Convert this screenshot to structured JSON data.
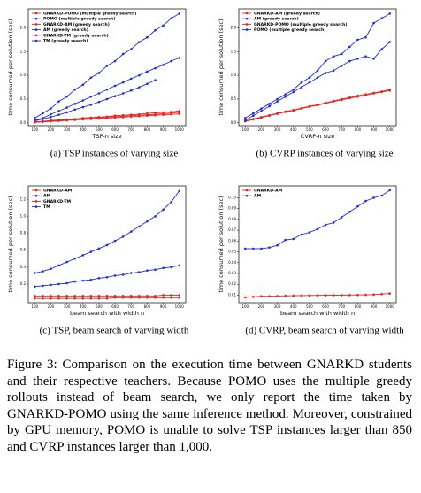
{
  "chart_data": [
    {
      "type": "line",
      "xlabel": "TSP-n size",
      "ylabel": "time consumed per solution (sec)",
      "caption": "(a)  TSP instances of varying size",
      "x": [
        100,
        150,
        200,
        250,
        300,
        350,
        400,
        450,
        500,
        550,
        600,
        650,
        700,
        750,
        800,
        850,
        900,
        950,
        1000
      ],
      "xlim": [
        60,
        1040
      ],
      "xticks": [
        100,
        200,
        300,
        400,
        500,
        600,
        700,
        800,
        900,
        1000
      ],
      "ylim": [
        -0.06,
        2.4
      ],
      "yticks": [
        {
          "value": 0,
          "label": "0.0"
        },
        0.5,
        {
          "value": 1,
          "label": "1.0"
        },
        1.5,
        {
          "value": 2,
          "label": "2.0"
        }
      ],
      "series": [
        {
          "name": "GNARKD-POMO (multiple greedy search)",
          "color": "#e8231f",
          "values": [
            0.01,
            0.02,
            0.03,
            0.04,
            0.05,
            0.06,
            0.07,
            0.08,
            0.09,
            0.1,
            0.11,
            0.12,
            0.13,
            0.14,
            0.15,
            0.16,
            0.17,
            0.18,
            0.19
          ]
        },
        {
          "name": "POMO (multiple greedy search)",
          "color": "#1f2fd6",
          "values": [
            0.04,
            0.08,
            0.12,
            0.17,
            0.22,
            0.28,
            0.33,
            0.38,
            0.44,
            0.5,
            0.56,
            0.62,
            0.68,
            0.75,
            0.82,
            0.9,
            null,
            null,
            null
          ]
        },
        {
          "name": "GNARKD-AM (greedy search)",
          "color": "#e8231f",
          "values": [
            0.02,
            0.03,
            0.05,
            0.06,
            0.07,
            0.08,
            0.1,
            0.11,
            0.12,
            0.13,
            0.15,
            0.16,
            0.17,
            0.18,
            0.2,
            0.21,
            0.22,
            0.23,
            0.25
          ]
        },
        {
          "name": "AM (greedy search)",
          "color": "#1f2fd6",
          "values": [
            0.05,
            0.1,
            0.18,
            0.25,
            0.32,
            0.4,
            0.47,
            0.55,
            0.62,
            0.7,
            0.78,
            0.85,
            0.93,
            1.0,
            1.08,
            1.15,
            1.22,
            1.3,
            1.37
          ]
        },
        {
          "name": "GNARKD-TM (greedy search)",
          "color": "#e8231f",
          "values": [
            0.02,
            0.03,
            0.04,
            0.05,
            0.06,
            0.07,
            0.08,
            0.1,
            0.11,
            0.12,
            0.13,
            0.14,
            0.15,
            0.16,
            0.17,
            0.18,
            0.19,
            0.21,
            0.22
          ]
        },
        {
          "name": "TM (greedy search)",
          "color": "#1f2fd6",
          "values": [
            0.1,
            0.2,
            0.3,
            0.45,
            0.55,
            0.7,
            0.8,
            0.95,
            1.05,
            1.2,
            1.3,
            1.45,
            1.55,
            1.7,
            1.8,
            1.95,
            2.05,
            2.2,
            2.3
          ]
        }
      ]
    },
    {
      "type": "line",
      "xlabel": "CVRP-n size",
      "ylabel": "time consumed per solution (sec)",
      "caption": "(b)  CVRP instances of varying size",
      "x": [
        100,
        150,
        200,
        250,
        300,
        350,
        400,
        450,
        500,
        550,
        600,
        650,
        700,
        750,
        800,
        850,
        900,
        950,
        1000
      ],
      "xlim": [
        60,
        1040
      ],
      "xticks": [
        100,
        200,
        300,
        400,
        500,
        600,
        700,
        800,
        900,
        1000
      ],
      "ylim": [
        -0.06,
        2.4
      ],
      "yticks": [
        {
          "value": 0,
          "label": "0.0"
        },
        0.5,
        {
          "value": 1,
          "label": "1.0"
        },
        1.5,
        {
          "value": 2,
          "label": "2.0"
        }
      ],
      "series": [
        {
          "name": "GNARKD-AM (greedy search)",
          "color": "#e8231f",
          "values": [
            0.04,
            0.08,
            0.12,
            0.16,
            0.2,
            0.24,
            0.27,
            0.31,
            0.35,
            0.38,
            0.42,
            0.46,
            0.5,
            0.53,
            0.57,
            0.6,
            0.63,
            0.66,
            0.7
          ]
        },
        {
          "name": "AM (greedy search)",
          "color": "#1f2fd6",
          "values": [
            0.1,
            0.2,
            0.3,
            0.4,
            0.5,
            0.6,
            0.7,
            0.85,
            0.95,
            1.1,
            1.3,
            1.4,
            1.45,
            1.6,
            1.75,
            1.8,
            2.1,
            2.2,
            2.3
          ]
        },
        {
          "name": "GNARKD-POMO (multiple greedy search)",
          "color": "#e8231f",
          "values": [
            0.03,
            0.07,
            0.11,
            0.15,
            0.19,
            0.23,
            0.26,
            0.3,
            0.34,
            0.37,
            0.41,
            0.45,
            0.48,
            0.52,
            0.55,
            0.58,
            0.62,
            0.65,
            0.68
          ]
        },
        {
          "name": "POMO (multiple greedy search)",
          "color": "#1f2fd6",
          "values": [
            0.05,
            0.15,
            0.25,
            0.35,
            0.45,
            0.55,
            0.65,
            0.75,
            0.85,
            0.95,
            1.05,
            1.1,
            1.2,
            1.3,
            1.35,
            1.4,
            1.35,
            1.55,
            1.7
          ]
        }
      ]
    },
    {
      "type": "line",
      "xlabel": "beam search with width n",
      "ylabel": "time consumed per solution (sec)",
      "caption": "(c)  TSP, beam search of varying width",
      "x": [
        100,
        150,
        200,
        250,
        300,
        350,
        400,
        450,
        500,
        550,
        600,
        650,
        700,
        750,
        800,
        850,
        900,
        950,
        1000
      ],
      "xlim": [
        60,
        1040
      ],
      "xticks": [
        100,
        200,
        300,
        400,
        500,
        600,
        700,
        800,
        900,
        1000
      ],
      "ylim": [
        -0.02,
        1.36
      ],
      "yticks": [
        0.2,
        0.4,
        0.6,
        0.8,
        {
          "value": 1,
          "label": "1.0"
        },
        1.2
      ],
      "series": [
        {
          "name": "GNARKD-AM",
          "color": "#e8231f",
          "values": [
            0.06,
            0.06,
            0.06,
            0.06,
            0.06,
            0.06,
            0.06,
            0.06,
            0.06,
            0.06,
            0.06,
            0.06,
            0.06,
            0.06,
            0.06,
            0.06,
            0.07,
            0.07,
            0.07
          ]
        },
        {
          "name": "AM",
          "color": "#1f2fd6",
          "values": [
            0.17,
            0.18,
            0.19,
            0.2,
            0.21,
            0.23,
            0.24,
            0.25,
            0.27,
            0.28,
            0.3,
            0.31,
            0.33,
            0.34,
            0.36,
            0.37,
            0.39,
            0.4,
            0.42
          ]
        },
        {
          "name": "GNARKD-TM",
          "color": "#e8231f",
          "values": [
            0.03,
            0.03,
            0.03,
            0.03,
            0.03,
            0.03,
            0.03,
            0.03,
            0.03,
            0.03,
            0.04,
            0.04,
            0.04,
            0.04,
            0.04,
            0.04,
            0.04,
            0.04,
            0.04
          ]
        },
        {
          "name": "TM",
          "color": "#1f2fd6",
          "values": [
            0.33,
            0.35,
            0.38,
            0.42,
            0.46,
            0.5,
            0.54,
            0.58,
            0.62,
            0.66,
            0.71,
            0.76,
            0.82,
            0.88,
            0.94,
            1.0,
            1.08,
            1.17,
            1.3
          ]
        }
      ]
    },
    {
      "type": "line",
      "xlabel": "beam search with width n",
      "ylabel": "time consumed per solution (sec)",
      "caption": "(d)  CVRP, beam search of varying width",
      "x": [
        100,
        150,
        200,
        250,
        300,
        350,
        400,
        450,
        500,
        550,
        600,
        650,
        700,
        750,
        800,
        850,
        900,
        950,
        1000
      ],
      "xlim": [
        60,
        1040
      ],
      "xticks": [
        100,
        200,
        300,
        400,
        500,
        600,
        700,
        800,
        900,
        1000
      ],
      "ylim": [
        0.003,
        0.111
      ],
      "yticks": [
        0.01,
        0.02,
        0.03,
        0.04,
        0.05,
        0.06,
        0.07,
        0.08,
        0.09,
        {
          "value": 0.1,
          "label": "0.10"
        }
      ],
      "series": [
        {
          "name": "GNARKD-AM",
          "color": "#e8231f",
          "values": [
            0.008,
            0.0085,
            0.009,
            0.009,
            0.0092,
            0.0094,
            0.0095,
            0.0096,
            0.0097,
            0.0098,
            0.0099,
            0.01,
            0.01,
            0.0101,
            0.0102,
            0.0103,
            0.0105,
            0.011,
            0.0115
          ]
        },
        {
          "name": "AM",
          "color": "#1f2fd6",
          "values": [
            0.053,
            0.053,
            0.053,
            0.054,
            0.056,
            0.061,
            0.062,
            0.066,
            0.068,
            0.071,
            0.075,
            0.077,
            0.082,
            0.087,
            0.092,
            0.097,
            0.1,
            0.102,
            0.107
          ]
        }
      ]
    }
  ],
  "figure_caption": "Figure 3: Comparison on the execution time between GNARKD students and their respective teachers. Because POMO uses the multiple greedy rollouts instead of beam search, we only report the time taken by GNARKD-POMO using the same inference method. Moreover, constrained by GPU memory, POMO is unable to solve TSP instances larger than 850 and CVRP instances larger than 1,000."
}
